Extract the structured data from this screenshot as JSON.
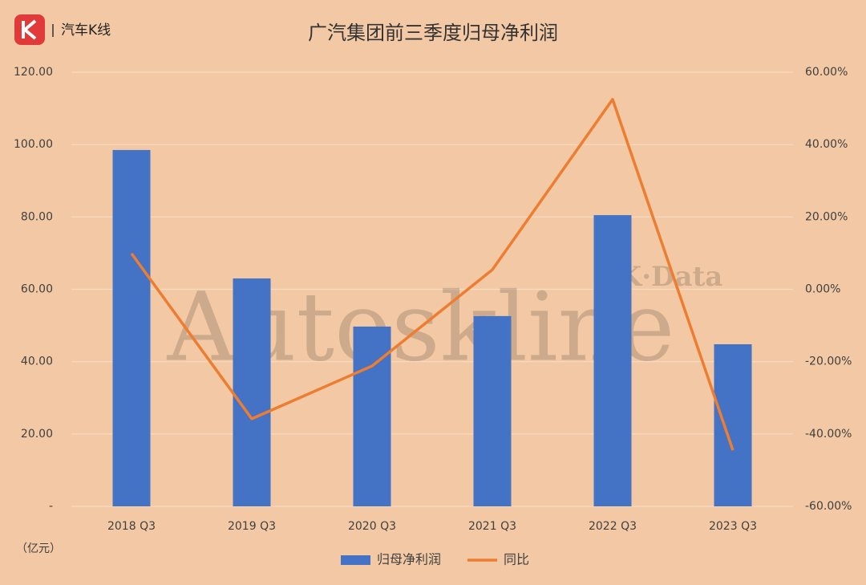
{
  "brand": "汽车K线",
  "chart_data": {
    "type": "bar",
    "title": "广汽集团前三季度归母净利润",
    "unit_label": "（亿元）",
    "watermark": "Autoskline",
    "watermark_small": "K·Data",
    "categories": [
      "2018 Q3",
      "2019 Q3",
      "2020 Q3",
      "2021 Q3",
      "2022 Q3",
      "2023 Q3"
    ],
    "series": [
      {
        "name": "归母净利润",
        "type": "bar",
        "color": "#4472c4",
        "values": [
          98.5,
          63.0,
          49.7,
          52.6,
          80.5,
          44.8
        ]
      },
      {
        "name": "同比",
        "type": "line",
        "axis": "y2",
        "color": "#ed7d31",
        "values": [
          9.9,
          -35.8,
          -21.2,
          5.4,
          52.5,
          -44.5
        ]
      }
    ],
    "ylim": [
      0,
      120
    ],
    "yticks": [
      {
        "value": 0,
        "label": "-"
      },
      {
        "value": 20,
        "label": "20.00"
      },
      {
        "value": 40,
        "label": "40.00"
      },
      {
        "value": 60,
        "label": "60.00"
      },
      {
        "value": 80,
        "label": "80.00"
      },
      {
        "value": 100,
        "label": "100.00"
      },
      {
        "value": 120,
        "label": "120.00"
      }
    ],
    "y2lim": [
      -60,
      60
    ],
    "y2ticks": [
      {
        "value": -60,
        "label": "-60.00%"
      },
      {
        "value": -40,
        "label": "-40.00%"
      },
      {
        "value": -20,
        "label": "-20.00%"
      },
      {
        "value": 0,
        "label": "0.00%"
      },
      {
        "value": 20,
        "label": "20.00%"
      },
      {
        "value": 40,
        "label": "40.00%"
      },
      {
        "value": 60,
        "label": "60.00%"
      }
    ],
    "grid": true,
    "legend": "bottom"
  }
}
